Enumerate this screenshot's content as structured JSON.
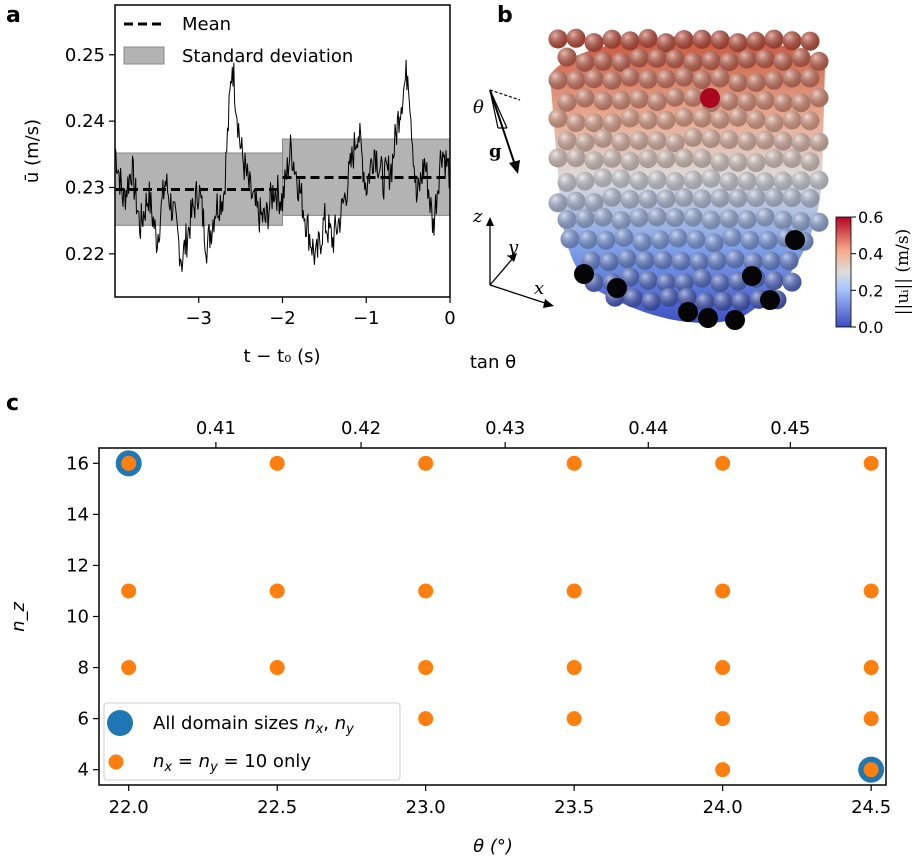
{
  "panels": {
    "a": "a",
    "b": "b",
    "c": "c"
  },
  "chart_data": [
    {
      "panel": "a",
      "type": "line",
      "xlabel": "t − t₀ (s)",
      "ylabel": "ū (m/s)",
      "xlim": [
        -4.0,
        0.0
      ],
      "ylim": [
        0.2135,
        0.2575
      ],
      "xticks": [
        -3,
        -2,
        -1,
        0
      ],
      "xtick_labels": [
        "−3",
        "−2",
        "−1",
        "0"
      ],
      "yticks": [
        0.22,
        0.23,
        0.24,
        0.25
      ],
      "ytick_labels": [
        "0.22",
        "0.23",
        "0.24",
        "0.25"
      ],
      "legend": [
        "Mean",
        "Standard deviation"
      ],
      "legend_loc": "top-left",
      "color": "#000000",
      "band_color": "#b3b3b3",
      "segments": [
        {
          "x_start": -4.0,
          "x_end": -2.0,
          "mean": 0.2297,
          "std_low": 0.2243,
          "std_high": 0.2352
        },
        {
          "x_start": -2.0,
          "x_end": 0.0,
          "mean": 0.2315,
          "std_low": 0.2258,
          "std_high": 0.2373
        }
      ],
      "series": [
        {
          "x": [
            -4.0,
            -3.9,
            -3.8,
            -3.7,
            -3.6,
            -3.5,
            -3.4,
            -3.3,
            -3.2,
            -3.1,
            -3.0,
            -2.9,
            -2.8,
            -2.7,
            -2.6,
            -2.5,
            -2.4,
            -2.3,
            -2.2,
            -2.1,
            -2.0,
            -1.9,
            -1.8,
            -1.7,
            -1.6,
            -1.5,
            -1.4,
            -1.3,
            -1.2,
            -1.1,
            -1.0,
            -0.9,
            -0.8,
            -0.7,
            -0.6,
            -0.5,
            -0.4,
            -0.3,
            -0.2,
            -0.1,
            0.0
          ],
          "values": [
            0.236,
            0.228,
            0.233,
            0.224,
            0.229,
            0.222,
            0.231,
            0.226,
            0.219,
            0.225,
            0.23,
            0.221,
            0.227,
            0.229,
            0.249,
            0.236,
            0.23,
            0.226,
            0.225,
            0.23,
            0.228,
            0.236,
            0.23,
            0.224,
            0.219,
            0.225,
            0.222,
            0.226,
            0.232,
            0.239,
            0.23,
            0.236,
            0.231,
            0.233,
            0.242,
            0.248,
            0.228,
            0.234,
            0.224,
            0.236,
            0.232
          ]
        }
      ]
    },
    {
      "panel": "b",
      "type": "heatmap",
      "colorbar_label": "||uᵢ|| (m/s)",
      "colorbar_ticks": [
        "0.0",
        "0.2",
        "0.4",
        "0.6"
      ],
      "colorbar_range": [
        0.0,
        0.6
      ],
      "colorbar_colors": [
        "#3b4cc0",
        "#dddddd",
        "#b40426"
      ],
      "annotations": [
        "θ",
        "g",
        "x",
        "y",
        "z"
      ]
    },
    {
      "panel": "c",
      "type": "scatter",
      "xlabel": "θ (°)",
      "ylabel": "n_z",
      "top_xlabel": "tan θ",
      "xlim": [
        21.9,
        24.55
      ],
      "ylim": [
        3.4,
        16.6
      ],
      "xticks": [
        22.0,
        22.5,
        23.0,
        23.5,
        24.0,
        24.5
      ],
      "xtick_labels": [
        "22.0",
        "22.5",
        "23.0",
        "23.5",
        "24.0",
        "24.5"
      ],
      "yticks": [
        4,
        6,
        8,
        10,
        12,
        14,
        16
      ],
      "ytick_labels": [
        "4",
        "6",
        "8",
        "10",
        "12",
        "14",
        "16"
      ],
      "top_ticks": [
        0.41,
        0.42,
        0.43,
        0.44,
        0.45
      ],
      "top_tick_labels": [
        "0.41",
        "0.42",
        "0.43",
        "0.44",
        "0.45"
      ],
      "legend_loc": "bottom-left",
      "series": [
        {
          "name": "All domain sizes n_x, n_y",
          "color": "#1f77b4",
          "x": [
            22.0,
            24.5
          ],
          "y": [
            16,
            4
          ]
        },
        {
          "name": "n_x = n_y = 10 only",
          "color": "#ff7f0e",
          "x": [
            22.0,
            22.5,
            23.0,
            23.5,
            24.0,
            24.5,
            22.0,
            22.5,
            23.0,
            23.5,
            24.0,
            24.5,
            22.0,
            22.5,
            23.0,
            23.5,
            24.0,
            24.5,
            23.0,
            23.5,
            24.0,
            24.5,
            24.0,
            24.5
          ],
          "y": [
            16,
            16,
            16,
            16,
            16,
            16,
            11,
            11,
            11,
            11,
            11,
            11,
            8,
            8,
            8,
            8,
            8,
            8,
            6,
            6,
            6,
            6,
            4,
            4
          ]
        }
      ],
      "legend_labels": {
        "blue": {
          "pre": "All domain sizes ",
          "var1": "n",
          "sub1": "x",
          "mid": ", ",
          "var2": "n",
          "sub2": "y"
        },
        "orange": {
          "var1": "n",
          "sub1": "x",
          "eq1": " = ",
          "var2": "n",
          "sub2": "y",
          "eq2": " = 10 only"
        }
      }
    }
  ]
}
